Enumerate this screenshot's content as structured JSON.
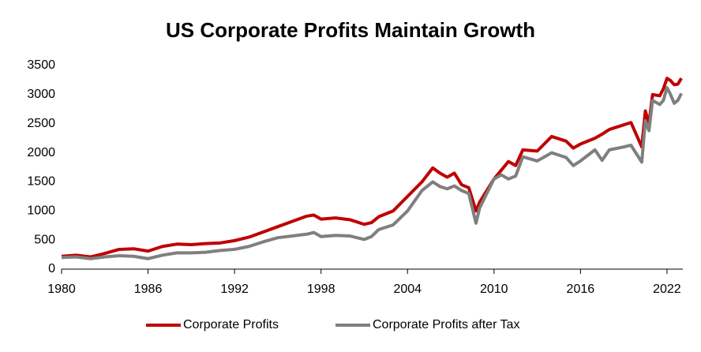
{
  "chart_data": {
    "type": "line",
    "title": "US Corporate Profits Maintain Growth",
    "x": [
      1980,
      1981,
      1982,
      1983,
      1984,
      1985,
      1986,
      1987,
      1988,
      1989,
      1990,
      1991,
      1992,
      1993,
      1994,
      1995,
      1996,
      1997,
      1997.5,
      1998,
      1999,
      2000,
      2001,
      2001.5,
      2002,
      2003,
      2004,
      2005,
      2005.75,
      2006.25,
      2006.75,
      2007.25,
      2007.75,
      2008.25,
      2008.75,
      2009,
      2009.5,
      2010,
      2010.5,
      2011,
      2011.5,
      2012,
      2013,
      2014,
      2015,
      2015.5,
      2016,
      2017,
      2017.5,
      2018,
      2019,
      2019.5,
      2020.25,
      2020.5,
      2020.75,
      2021,
      2021.5,
      2021.75,
      2022,
      2022.25,
      2022.5,
      2022.75,
      2023
    ],
    "series": [
      {
        "name": "Corporate Profits",
        "color": "#c00000",
        "values": [
          220,
          240,
          210,
          270,
          340,
          350,
          310,
          390,
          430,
          420,
          440,
          450,
          490,
          550,
          640,
          730,
          820,
          910,
          930,
          860,
          880,
          850,
          770,
          800,
          900,
          1000,
          1250,
          1500,
          1740,
          1650,
          1580,
          1650,
          1450,
          1400,
          1000,
          1150,
          1350,
          1550,
          1700,
          1850,
          1780,
          2050,
          2030,
          2280,
          2200,
          2080,
          2150,
          2250,
          2320,
          2400,
          2480,
          2520,
          2100,
          2720,
          2500,
          3000,
          2980,
          3100,
          3280,
          3240,
          3170,
          3180,
          3280
        ]
      },
      {
        "name": "Corporate Profits after Tax",
        "color": "#7f7f7f",
        "values": [
          200,
          210,
          180,
          210,
          230,
          220,
          180,
          240,
          280,
          280,
          290,
          320,
          340,
          390,
          470,
          540,
          570,
          600,
          630,
          560,
          580,
          570,
          510,
          560,
          680,
          760,
          1000,
          1350,
          1500,
          1420,
          1380,
          1430,
          1350,
          1300,
          790,
          1050,
          1300,
          1550,
          1620,
          1550,
          1600,
          1930,
          1860,
          2000,
          1920,
          1780,
          1860,
          2050,
          1870,
          2050,
          2100,
          2130,
          1840,
          2550,
          2380,
          2900,
          2830,
          2900,
          3120,
          3000,
          2850,
          2900,
          3020
        ]
      }
    ],
    "xlim": [
      1980,
      2023.1
    ],
    "xticks": [
      1980,
      1986,
      1992,
      1998,
      2004,
      2010,
      2016,
      2022
    ],
    "ylim": [
      0,
      3500
    ],
    "yticks": [
      0,
      500,
      1000,
      1500,
      2000,
      2500,
      3000,
      3500
    ],
    "grid": false,
    "legend": "bottom"
  }
}
